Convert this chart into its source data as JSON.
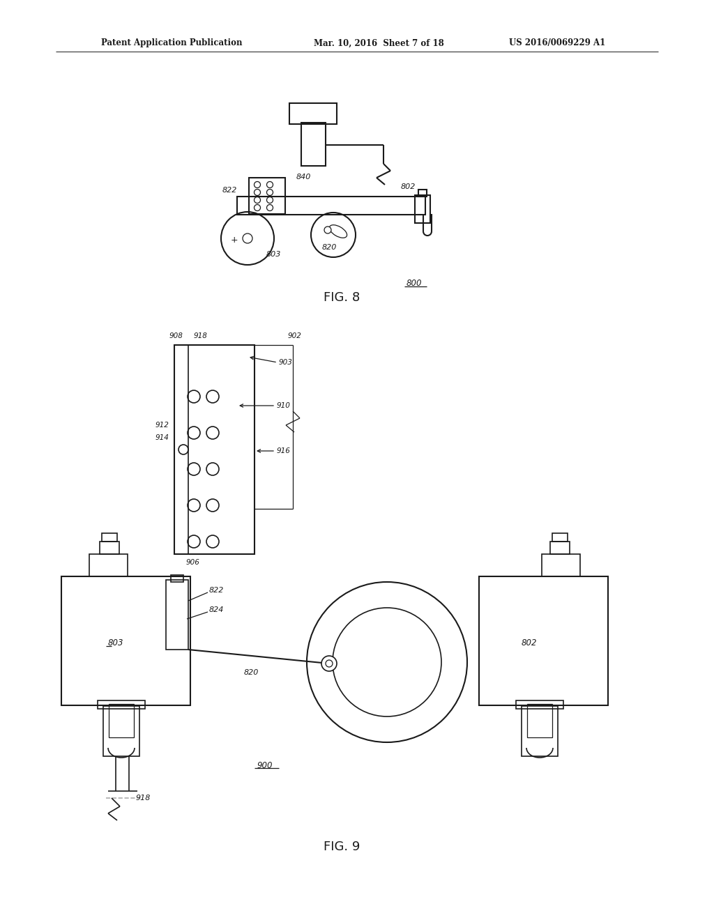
{
  "bg_color": "#ffffff",
  "line_color": "#1a1a1a",
  "text_color": "#1a1a1a",
  "header_left": "Patent Application Publication",
  "header_mid": "Mar. 10, 2016  Sheet 7 of 18",
  "header_right": "US 2016/0069229 A1",
  "fig8_label": "FIG. 8",
  "fig9_label": "FIG. 9"
}
